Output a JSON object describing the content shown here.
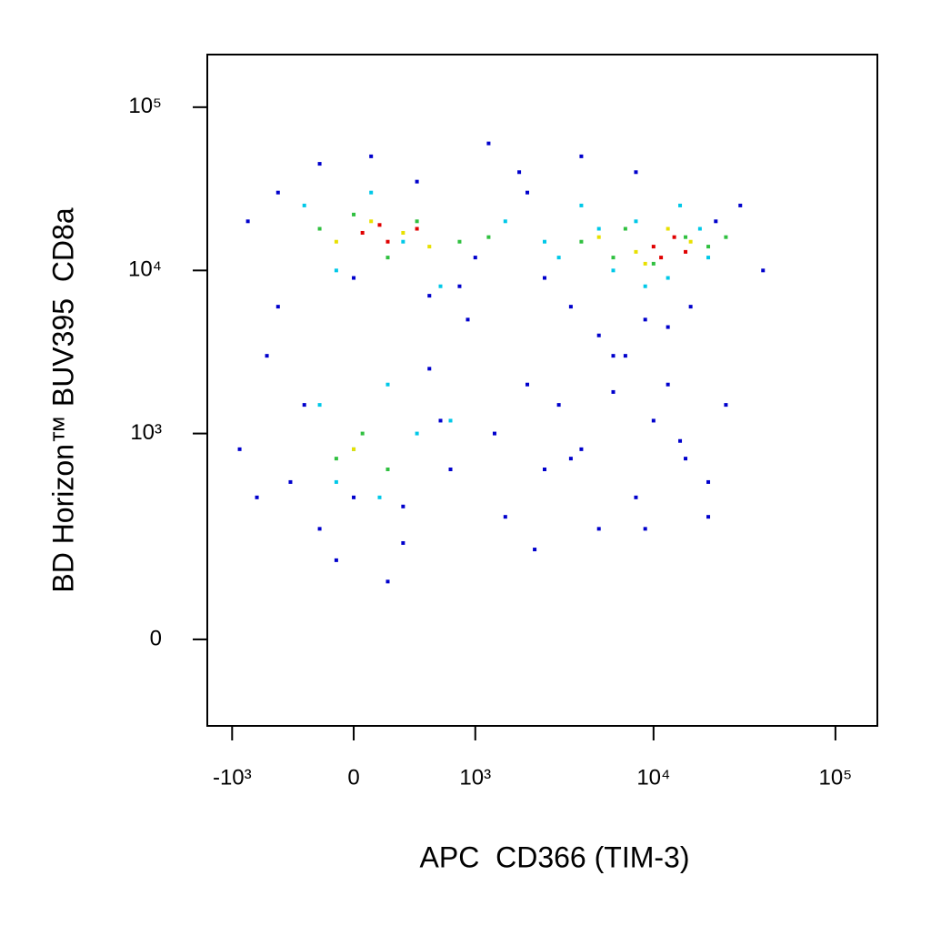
{
  "chart_data": {
    "type": "scatter",
    "x_label": "APC  CD366 (TIM-3)",
    "y_label": "BD Horizon™ BUV395  CD8a",
    "xscale": "biexponential",
    "yscale": "biexponential",
    "xlim": [
      -1400,
      170000
    ],
    "ylim": [
      -170,
      210000
    ],
    "xticks": [
      {
        "value": -1000,
        "label": "-10³"
      },
      0,
      {
        "value": 1000,
        "label": "10³"
      },
      {
        "value": 10000,
        "label": "10⁴"
      },
      {
        "value": 100000,
        "label": "10⁵"
      }
    ],
    "yticks": [
      0,
      {
        "value": 1000,
        "label": "10³"
      },
      {
        "value": 10000,
        "label": "10⁴"
      },
      {
        "value": 100000,
        "label": "10⁵"
      }
    ],
    "series": [
      {
        "color": "#0000cc",
        "x": [
          -800,
          -500,
          -200,
          100,
          400,
          800,
          -600,
          -300,
          0,
          300,
          600,
          -900,
          -400,
          -100,
          200,
          500,
          900,
          1500,
          2000,
          2500,
          3000,
          4000,
          5000,
          6000,
          8000,
          10000,
          12000,
          15000,
          20000,
          25000,
          30000,
          1200,
          1800,
          2500,
          3500,
          5000,
          7000,
          9000,
          12000,
          16000,
          22000,
          -700,
          -200,
          300,
          700,
          1300,
          2200,
          3500,
          6000,
          9000,
          14000,
          20000,
          -500,
          0,
          500,
          1000,
          2000,
          4000,
          8000,
          40000
        ],
        "values": [
          20000,
          30000,
          45000,
          50000,
          35000,
          8000,
          3000,
          1500,
          400,
          200,
          1200,
          800,
          500,
          150,
          100,
          2500,
          5000,
          300,
          2000,
          600,
          1500,
          800,
          250,
          3000,
          400,
          1200,
          2000,
          700,
          300,
          1500,
          25000,
          60000,
          40000,
          9000,
          6000,
          4000,
          3000,
          5000,
          4500,
          6000,
          20000,
          400,
          250,
          350,
          600,
          1000,
          180,
          700,
          1800,
          250,
          900,
          500,
          6000,
          9000,
          7000,
          12000,
          30000,
          50000,
          40000,
          10000
        ]
      },
      {
        "color": "#00c8e8",
        "x": [
          -300,
          -100,
          100,
          300,
          600,
          1500,
          2500,
          4000,
          6000,
          9000,
          14000,
          20000,
          -200,
          0,
          200,
          400,
          700,
          3000,
          5000,
          8000,
          12000,
          18000,
          -100,
          150
        ],
        "values": [
          25000,
          10000,
          30000,
          15000,
          8000,
          20000,
          15000,
          25000,
          10000,
          8000,
          25000,
          12000,
          1500,
          800,
          2000,
          1000,
          1200,
          12000,
          18000,
          20000,
          9000,
          18000,
          500,
          400
        ]
      },
      {
        "color": "#30c040",
        "x": [
          -200,
          0,
          200,
          400,
          800,
          4000,
          7000,
          10000,
          15000,
          20000,
          -100,
          50,
          200,
          1200,
          6000,
          25000
        ],
        "values": [
          18000,
          22000,
          12000,
          20000,
          15000,
          15000,
          18000,
          11000,
          16000,
          14000,
          700,
          1000,
          600,
          16000,
          12000,
          16000
        ]
      },
      {
        "color": "#e8e000",
        "x": [
          -100,
          100,
          300,
          500,
          5000,
          8000,
          12000,
          16000,
          0,
          9000
        ],
        "values": [
          15000,
          20000,
          17000,
          14000,
          16000,
          13000,
          18000,
          15000,
          800,
          11000
        ]
      },
      {
        "color": "#e00000",
        "x": [
          50,
          200,
          400,
          10000,
          13000,
          15000,
          150,
          11000
        ],
        "values": [
          17000,
          15000,
          18000,
          14000,
          16000,
          13000,
          19000,
          12000
        ]
      }
    ]
  }
}
